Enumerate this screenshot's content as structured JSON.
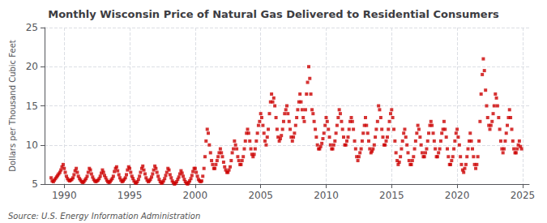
{
  "chart_data": {
    "type": "scatter",
    "title": "Monthly Wisconsin Price of Natural Gas Delivered to Residential Consumers",
    "ylabel": "Dollars per Thousand Cubic Feet",
    "annotations": [
      "Source: U.S. Energy Information Administration"
    ],
    "color": "#cc0000",
    "marker": "square",
    "grid": true,
    "xlim": [
      1988.5,
      2025.5
    ],
    "xticks": [
      1990,
      1995,
      2000,
      2005,
      2010,
      2015,
      2020,
      2025
    ],
    "ylim": [
      5,
      25
    ],
    "yticks": [
      5,
      10,
      15,
      20,
      25
    ],
    "x": [
      1989.0,
      1989.08,
      1989.17,
      1989.25,
      1989.33,
      1989.42,
      1989.5,
      1989.58,
      1989.67,
      1989.75,
      1989.83,
      1989.92,
      1990.0,
      1990.08,
      1990.17,
      1990.25,
      1990.33,
      1990.42,
      1990.5,
      1990.58,
      1990.67,
      1990.75,
      1990.83,
      1990.92,
      1991.0,
      1991.08,
      1991.17,
      1991.25,
      1991.33,
      1991.42,
      1991.5,
      1991.58,
      1991.67,
      1991.75,
      1991.83,
      1991.92,
      1992.0,
      1992.08,
      1992.17,
      1992.25,
      1992.33,
      1992.42,
      1992.5,
      1992.58,
      1992.67,
      1992.75,
      1992.83,
      1992.92,
      1993.0,
      1993.08,
      1993.17,
      1993.25,
      1993.33,
      1993.42,
      1993.5,
      1993.58,
      1993.67,
      1993.75,
      1993.83,
      1993.92,
      1994.0,
      1994.08,
      1994.17,
      1994.25,
      1994.33,
      1994.42,
      1994.5,
      1994.58,
      1994.67,
      1994.75,
      1994.83,
      1994.92,
      1995.0,
      1995.08,
      1995.17,
      1995.25,
      1995.33,
      1995.42,
      1995.5,
      1995.58,
      1995.67,
      1995.75,
      1995.83,
      1995.92,
      1996.0,
      1996.08,
      1996.17,
      1996.25,
      1996.33,
      1996.42,
      1996.5,
      1996.58,
      1996.67,
      1996.75,
      1996.83,
      1996.92,
      1997.0,
      1997.08,
      1997.17,
      1997.25,
      1997.33,
      1997.42,
      1997.5,
      1997.58,
      1997.67,
      1997.75,
      1997.83,
      1997.92,
      1998.0,
      1998.08,
      1998.17,
      1998.25,
      1998.33,
      1998.42,
      1998.5,
      1998.58,
      1998.67,
      1998.75,
      1998.83,
      1998.92,
      1999.0,
      1999.08,
      1999.17,
      1999.25,
      1999.33,
      1999.42,
      1999.5,
      1999.58,
      1999.67,
      1999.75,
      1999.83,
      1999.92,
      2000.0,
      2000.08,
      2000.17,
      2000.25,
      2000.33,
      2000.42,
      2000.5,
      2000.58,
      2000.67,
      2000.75,
      2000.83,
      2000.92,
      2001.0,
      2001.08,
      2001.17,
      2001.25,
      2001.33,
      2001.42,
      2001.5,
      2001.58,
      2001.67,
      2001.75,
      2001.83,
      2001.92,
      2002.0,
      2002.08,
      2002.17,
      2002.25,
      2002.33,
      2002.42,
      2002.5,
      2002.58,
      2002.67,
      2002.75,
      2002.83,
      2002.92,
      2003.0,
      2003.08,
      2003.17,
      2003.25,
      2003.33,
      2003.42,
      2003.5,
      2003.58,
      2003.67,
      2003.75,
      2003.83,
      2003.92,
      2004.0,
      2004.08,
      2004.17,
      2004.25,
      2004.33,
      2004.42,
      2004.5,
      2004.58,
      2004.67,
      2004.75,
      2004.83,
      2004.92,
      2005.0,
      2005.08,
      2005.17,
      2005.25,
      2005.33,
      2005.42,
      2005.5,
      2005.58,
      2005.67,
      2005.75,
      2005.83,
      2005.92,
      2006.0,
      2006.08,
      2006.17,
      2006.25,
      2006.33,
      2006.42,
      2006.5,
      2006.58,
      2006.67,
      2006.75,
      2006.83,
      2006.92,
      2007.0,
      2007.08,
      2007.17,
      2007.25,
      2007.33,
      2007.42,
      2007.5,
      2007.58,
      2007.67,
      2007.75,
      2007.83,
      2007.92,
      2008.0,
      2008.08,
      2008.17,
      2008.25,
      2008.33,
      2008.42,
      2008.5,
      2008.58,
      2008.67,
      2008.75,
      2008.83,
      2008.92,
      2009.0,
      2009.08,
      2009.17,
      2009.25,
      2009.33,
      2009.42,
      2009.5,
      2009.58,
      2009.67,
      2009.75,
      2009.83,
      2009.92,
      2010.0,
      2010.08,
      2010.17,
      2010.25,
      2010.33,
      2010.42,
      2010.5,
      2010.58,
      2010.67,
      2010.75,
      2010.83,
      2010.92,
      2011.0,
      2011.08,
      2011.17,
      2011.25,
      2011.33,
      2011.42,
      2011.5,
      2011.58,
      2011.67,
      2011.75,
      2011.83,
      2011.92,
      2012.0,
      2012.08,
      2012.17,
      2012.25,
      2012.33,
      2012.42,
      2012.5,
      2012.58,
      2012.67,
      2012.75,
      2012.83,
      2012.92,
      2013.0,
      2013.08,
      2013.17,
      2013.25,
      2013.33,
      2013.42,
      2013.5,
      2013.58,
      2013.67,
      2013.75,
      2013.83,
      2013.92,
      2014.0,
      2014.08,
      2014.17,
      2014.25,
      2014.33,
      2014.42,
      2014.5,
      2014.58,
      2014.67,
      2014.75,
      2014.83,
      2014.92,
      2015.0,
      2015.08,
      2015.17,
      2015.25,
      2015.33,
      2015.42,
      2015.5,
      2015.58,
      2015.67,
      2015.75,
      2015.83,
      2015.92,
      2016.0,
      2016.08,
      2016.17,
      2016.25,
      2016.33,
      2016.42,
      2016.5,
      2016.58,
      2016.67,
      2016.75,
      2016.83,
      2016.92,
      2017.0,
      2017.08,
      2017.17,
      2017.25,
      2017.33,
      2017.42,
      2017.5,
      2017.58,
      2017.67,
      2017.75,
      2017.83,
      2017.92,
      2018.0,
      2018.08,
      2018.17,
      2018.25,
      2018.33,
      2018.42,
      2018.5,
      2018.58,
      2018.67,
      2018.75,
      2018.83,
      2018.92,
      2019.0,
      2019.08,
      2019.17,
      2019.25,
      2019.33,
      2019.42,
      2019.5,
      2019.58,
      2019.67,
      2019.75,
      2019.83,
      2019.92,
      2020.0,
      2020.08,
      2020.17,
      2020.25,
      2020.33,
      2020.42,
      2020.5,
      2020.58,
      2020.67,
      2020.75,
      2020.83,
      2020.92,
      2021.0,
      2021.08,
      2021.17,
      2021.25,
      2021.33,
      2021.42,
      2021.5,
      2021.58,
      2021.67,
      2021.75,
      2021.83,
      2021.92,
      2022.0,
      2022.08,
      2022.17,
      2022.25,
      2022.33,
      2022.42,
      2022.5,
      2022.58,
      2022.67,
      2022.75,
      2022.83,
      2022.92,
      2023.0,
      2023.08,
      2023.17,
      2023.25,
      2023.33,
      2023.42,
      2023.5,
      2023.58,
      2023.67,
      2023.75,
      2023.83,
      2023.92,
      2024.0,
      2024.08,
      2024.17,
      2024.25,
      2024.33,
      2024.42,
      2024.5,
      2024.58,
      2024.67,
      2024.75,
      2024.83,
      2024.92
    ],
    "values": [
      5.8,
      5.4,
      5.3,
      5.5,
      5.7,
      5.9,
      6.1,
      6.3,
      6.5,
      6.8,
      7.2,
      7.5,
      7.0,
      6.5,
      6.0,
      5.7,
      5.5,
      5.4,
      5.5,
      5.6,
      5.8,
      6.2,
      6.7,
      7.0,
      6.5,
      6.0,
      5.7,
      5.5,
      5.3,
      5.2,
      5.3,
      5.5,
      5.7,
      6.0,
      6.5,
      7.0,
      6.8,
      6.3,
      5.9,
      5.6,
      5.4,
      5.3,
      5.4,
      5.5,
      5.7,
      6.0,
      6.4,
      6.8,
      6.5,
      6.1,
      5.8,
      5.5,
      5.3,
      5.2,
      5.3,
      5.5,
      5.7,
      6.0,
      6.6,
      7.0,
      7.2,
      6.7,
      6.2,
      5.8,
      5.5,
      5.3,
      5.4,
      5.6,
      5.8,
      6.2,
      6.8,
      7.2,
      7.0,
      6.5,
      6.0,
      5.7,
      5.4,
      5.2,
      5.1,
      5.3,
      5.6,
      6.0,
      6.5,
      7.0,
      7.3,
      6.8,
      6.3,
      5.8,
      5.5,
      5.3,
      5.4,
      5.6,
      5.9,
      6.3,
      6.8,
      7.3,
      7.0,
      6.5,
      6.0,
      5.6,
      5.3,
      5.1,
      5.2,
      5.4,
      5.7,
      6.1,
      6.5,
      7.0,
      6.8,
      6.2,
      5.8,
      5.4,
      5.2,
      5.0,
      5.1,
      5.3,
      5.6,
      5.9,
      6.3,
      6.7,
      6.4,
      6.0,
      5.6,
      5.3,
      5.1,
      5.0,
      5.2,
      5.4,
      5.7,
      6.1,
      6.6,
      7.0,
      7.0,
      6.5,
      6.0,
      5.6,
      5.4,
      5.3,
      5.4,
      6.0,
      7.0,
      8.5,
      10.5,
      12.0,
      11.5,
      10.0,
      9.0,
      8.0,
      7.5,
      7.0,
      7.0,
      7.5,
      8.0,
      8.5,
      9.0,
      9.5,
      9.0,
      8.5,
      7.8,
      7.2,
      6.8,
      6.5,
      6.5,
      6.8,
      7.2,
      8.0,
      9.0,
      9.5,
      10.5,
      10.0,
      9.5,
      8.5,
      8.0,
      7.5,
      7.5,
      8.0,
      8.5,
      9.5,
      10.5,
      11.5,
      12.0,
      11.5,
      10.5,
      9.5,
      8.8,
      8.5,
      8.8,
      9.5,
      10.5,
      11.5,
      12.5,
      13.0,
      14.0,
      13.5,
      12.5,
      11.5,
      10.5,
      10.0,
      11.0,
      12.0,
      14.0,
      15.5,
      16.5,
      15.5,
      16.0,
      15.0,
      13.5,
      12.0,
      11.0,
      10.5,
      10.8,
      11.2,
      12.0,
      13.0,
      14.0,
      14.5,
      15.0,
      14.0,
      13.0,
      12.0,
      11.0,
      10.5,
      11.0,
      11.5,
      12.5,
      13.5,
      14.5,
      15.5,
      16.5,
      15.5,
      14.5,
      13.5,
      13.0,
      14.5,
      16.5,
      18.0,
      20.0,
      18.5,
      16.5,
      14.5,
      14.0,
      13.0,
      12.0,
      11.0,
      10.0,
      9.5,
      9.5,
      9.8,
      10.2,
      10.8,
      11.5,
      12.5,
      13.5,
      13.0,
      12.0,
      11.0,
      10.0,
      9.5,
      9.5,
      10.0,
      10.5,
      11.5,
      12.5,
      13.5,
      14.5,
      14.0,
      13.0,
      12.0,
      11.0,
      10.0,
      10.0,
      10.5,
      11.0,
      12.0,
      13.0,
      13.5,
      13.0,
      12.0,
      10.5,
      9.5,
      8.5,
      8.0,
      8.5,
      9.0,
      9.5,
      10.5,
      11.5,
      12.5,
      13.5,
      12.5,
      11.5,
      10.5,
      9.5,
      9.0,
      9.2,
      9.5,
      10.0,
      11.0,
      12.0,
      13.0,
      15.0,
      14.5,
      13.5,
      12.0,
      11.0,
      10.0,
      10.0,
      10.5,
      11.0,
      12.0,
      13.0,
      14.0,
      14.5,
      13.5,
      12.0,
      10.5,
      9.0,
      8.0,
      7.5,
      7.8,
      8.5,
      9.5,
      10.5,
      11.5,
      12.0,
      11.0,
      10.0,
      9.0,
      8.0,
      7.5,
      7.5,
      8.0,
      8.5,
      9.5,
      10.5,
      11.5,
      12.5,
      12.0,
      11.0,
      10.0,
      9.0,
      8.5,
      8.5,
      9.0,
      9.5,
      10.5,
      11.5,
      12.5,
      13.0,
      12.5,
      11.5,
      10.5,
      9.5,
      8.5,
      8.5,
      9.0,
      9.5,
      10.5,
      11.5,
      12.0,
      13.0,
      12.0,
      11.0,
      9.5,
      8.5,
      7.5,
      7.5,
      8.0,
      8.5,
      9.5,
      10.5,
      11.5,
      12.0,
      11.0,
      10.0,
      8.5,
      7.5,
      6.8,
      6.5,
      7.0,
      7.5,
      8.5,
      9.5,
      10.5,
      11.5,
      10.5,
      9.5,
      8.5,
      7.5,
      7.0,
      7.5,
      8.5,
      10.5,
      13.0,
      16.5,
      19.0,
      21.0,
      19.5,
      17.0,
      15.0,
      13.5,
      12.5,
      12.0,
      12.5,
      13.0,
      14.0,
      15.0,
      16.5,
      16.0,
      15.0,
      13.5,
      12.0,
      10.5,
      9.5,
      9.0,
      9.5,
      10.5,
      11.5,
      12.5,
      13.5,
      14.5,
      13.5,
      12.0,
      10.5,
      9.5,
      9.0,
      9.0,
      9.5,
      10.0,
      10.5,
      9.8,
      9.5
    ]
  }
}
